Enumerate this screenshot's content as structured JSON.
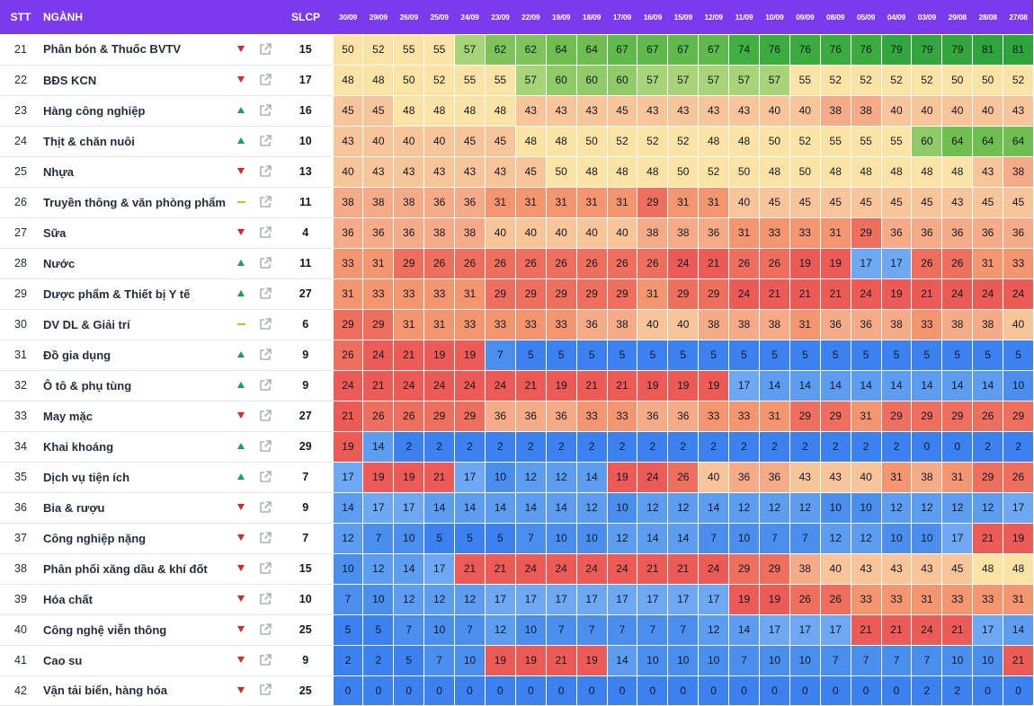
{
  "header": {
    "stt": "STT",
    "name": "NGÀNH",
    "slcp": "SLCP",
    "dates": [
      "30/09",
      "29/09",
      "26/09",
      "25/09",
      "24/09",
      "23/09",
      "22/09",
      "19/09",
      "18/09",
      "17/09",
      "16/09",
      "15/09",
      "12/09",
      "11/09",
      "10/09",
      "09/09",
      "08/09",
      "05/09",
      "04/09",
      "03/09",
      "29/08",
      "28/08",
      "27/08"
    ]
  },
  "icons": {
    "trend_up": "triangle-up-icon",
    "trend_down": "triangle-down-icon",
    "trend_flat": "dash-icon",
    "link": "external-link-icon"
  },
  "colors": {
    "header_bg": "#7c3aed",
    "trend_up": "#16a34a",
    "trend_down": "#dc2626",
    "trend_flat": "#eab308"
  },
  "rows": [
    {
      "stt": "21",
      "name": "Phân bón & Thuốc BVTV",
      "trend": "down",
      "slcp": "15",
      "values": [
        50,
        52,
        55,
        55,
        57,
        62,
        62,
        64,
        64,
        67,
        67,
        67,
        67,
        74,
        76,
        76,
        76,
        76,
        79,
        79,
        79,
        81,
        81
      ]
    },
    {
      "stt": "22",
      "name": "BĐS KCN",
      "trend": "down",
      "slcp": "17",
      "values": [
        48,
        48,
        50,
        52,
        55,
        55,
        57,
        60,
        60,
        60,
        57,
        57,
        57,
        57,
        57,
        55,
        52,
        52,
        52,
        52,
        50,
        50,
        52
      ]
    },
    {
      "stt": "23",
      "name": "Hàng công nghiệp",
      "trend": "up",
      "slcp": "16",
      "values": [
        45,
        45,
        48,
        48,
        48,
        48,
        43,
        43,
        43,
        45,
        43,
        43,
        43,
        43,
        40,
        40,
        38,
        38,
        40,
        40,
        40,
        40,
        43
      ]
    },
    {
      "stt": "24",
      "name": "Thịt & chăn nuôi",
      "trend": "up",
      "slcp": "10",
      "values": [
        43,
        40,
        40,
        40,
        45,
        45,
        48,
        48,
        50,
        52,
        52,
        52,
        48,
        48,
        50,
        52,
        55,
        55,
        55,
        60,
        64,
        64,
        64
      ]
    },
    {
      "stt": "25",
      "name": "Nhựa",
      "trend": "down",
      "slcp": "13",
      "values": [
        40,
        43,
        43,
        43,
        43,
        43,
        45,
        50,
        48,
        48,
        48,
        50,
        52,
        50,
        48,
        50,
        48,
        48,
        48,
        48,
        48,
        43,
        38
      ]
    },
    {
      "stt": "26",
      "name": "Truyền thông & văn phòng phẩm",
      "trend": "flat",
      "slcp": "11",
      "values": [
        38,
        38,
        38,
        36,
        36,
        31,
        31,
        31,
        31,
        31,
        29,
        31,
        31,
        40,
        45,
        45,
        45,
        45,
        45,
        45,
        43,
        45,
        45
      ]
    },
    {
      "stt": "27",
      "name": "Sữa",
      "trend": "down",
      "slcp": "4",
      "values": [
        36,
        36,
        36,
        38,
        38,
        40,
        40,
        40,
        40,
        40,
        38,
        38,
        36,
        31,
        33,
        33,
        31,
        29,
        36,
        36,
        36,
        36,
        36
      ]
    },
    {
      "stt": "28",
      "name": "Nước",
      "trend": "up",
      "slcp": "11",
      "values": [
        33,
        31,
        29,
        26,
        26,
        26,
        26,
        26,
        26,
        26,
        26,
        24,
        21,
        26,
        26,
        19,
        19,
        17,
        17,
        26,
        26,
        31,
        33
      ]
    },
    {
      "stt": "29",
      "name": "Dược phẩm & Thiết bị Y tế",
      "trend": "up",
      "slcp": "27",
      "values": [
        31,
        33,
        33,
        33,
        31,
        29,
        29,
        29,
        29,
        29,
        31,
        29,
        29,
        24,
        21,
        21,
        21,
        24,
        19,
        21,
        24,
        24,
        24
      ]
    },
    {
      "stt": "30",
      "name": "DV DL & Giải trí",
      "trend": "flat",
      "slcp": "6",
      "values": [
        29,
        29,
        31,
        31,
        33,
        33,
        33,
        33,
        36,
        38,
        40,
        40,
        38,
        38,
        38,
        31,
        36,
        36,
        38,
        33,
        38,
        38,
        40
      ]
    },
    {
      "stt": "31",
      "name": "Đồ gia dụng",
      "trend": "up",
      "slcp": "9",
      "values": [
        26,
        24,
        21,
        19,
        19,
        7,
        5,
        5,
        5,
        5,
        5,
        5,
        5,
        5,
        5,
        5,
        5,
        5,
        5,
        5,
        5,
        5,
        5
      ]
    },
    {
      "stt": "32",
      "name": "Ô tô & phụ tùng",
      "trend": "up",
      "slcp": "9",
      "values": [
        24,
        21,
        24,
        24,
        24,
        24,
        21,
        19,
        21,
        21,
        19,
        19,
        19,
        17,
        14,
        14,
        14,
        14,
        14,
        14,
        14,
        14,
        10
      ]
    },
    {
      "stt": "33",
      "name": "May mặc",
      "trend": "down",
      "slcp": "27",
      "values": [
        21,
        26,
        26,
        29,
        29,
        36,
        36,
        36,
        33,
        33,
        36,
        36,
        33,
        33,
        31,
        29,
        29,
        31,
        29,
        29,
        29,
        26,
        29
      ]
    },
    {
      "stt": "34",
      "name": "Khai khoáng",
      "trend": "up",
      "slcp": "29",
      "values": [
        19,
        14,
        2,
        2,
        2,
        2,
        2,
        2,
        2,
        2,
        2,
        2,
        2,
        2,
        2,
        2,
        2,
        2,
        2,
        0,
        0,
        2,
        2
      ]
    },
    {
      "stt": "35",
      "name": "Dịch vụ tiện ích",
      "trend": "up",
      "slcp": "7",
      "values": [
        17,
        19,
        19,
        21,
        17,
        10,
        12,
        12,
        14,
        19,
        24,
        26,
        40,
        36,
        36,
        43,
        43,
        40,
        31,
        38,
        31,
        29,
        26
      ]
    },
    {
      "stt": "36",
      "name": "Bia & rượu",
      "trend": "down",
      "slcp": "9",
      "values": [
        14,
        17,
        17,
        14,
        14,
        14,
        14,
        14,
        12,
        10,
        12,
        12,
        14,
        12,
        12,
        12,
        10,
        10,
        12,
        12,
        12,
        12,
        17
      ]
    },
    {
      "stt": "37",
      "name": "Công nghiệp nặng",
      "trend": "down",
      "slcp": "7",
      "values": [
        12,
        7,
        10,
        5,
        5,
        5,
        7,
        10,
        10,
        12,
        14,
        14,
        7,
        10,
        7,
        7,
        12,
        12,
        10,
        10,
        17,
        21,
        19
      ]
    },
    {
      "stt": "38",
      "name": "Phân phối xăng dầu & khí đốt",
      "trend": "down",
      "slcp": "15",
      "values": [
        10,
        12,
        14,
        17,
        21,
        21,
        24,
        24,
        24,
        24,
        21,
        21,
        24,
        29,
        29,
        38,
        40,
        43,
        43,
        43,
        45,
        48,
        48
      ]
    },
    {
      "stt": "39",
      "name": "Hóa chất",
      "trend": "down",
      "slcp": "10",
      "values": [
        7,
        10,
        12,
        12,
        12,
        17,
        17,
        17,
        17,
        17,
        17,
        17,
        17,
        19,
        19,
        26,
        26,
        33,
        33,
        31,
        33,
        33,
        31
      ]
    },
    {
      "stt": "40",
      "name": "Công nghệ viễn thông",
      "trend": "down",
      "slcp": "25",
      "values": [
        5,
        5,
        7,
        10,
        7,
        12,
        10,
        7,
        7,
        7,
        7,
        7,
        12,
        14,
        17,
        17,
        17,
        21,
        21,
        24,
        21,
        17,
        14
      ]
    },
    {
      "stt": "41",
      "name": "Cao su",
      "trend": "down",
      "slcp": "9",
      "values": [
        2,
        2,
        5,
        7,
        10,
        19,
        19,
        21,
        19,
        14,
        10,
        10,
        10,
        7,
        10,
        10,
        7,
        7,
        7,
        7,
        10,
        10,
        21
      ]
    },
    {
      "stt": "42",
      "name": "Vận tải biển, hàng hóa",
      "trend": "down",
      "slcp": "25",
      "values": [
        0,
        0,
        0,
        0,
        0,
        0,
        0,
        0,
        0,
        0,
        0,
        0,
        0,
        0,
        0,
        0,
        0,
        0,
        0,
        2,
        2,
        0,
        0
      ]
    }
  ]
}
